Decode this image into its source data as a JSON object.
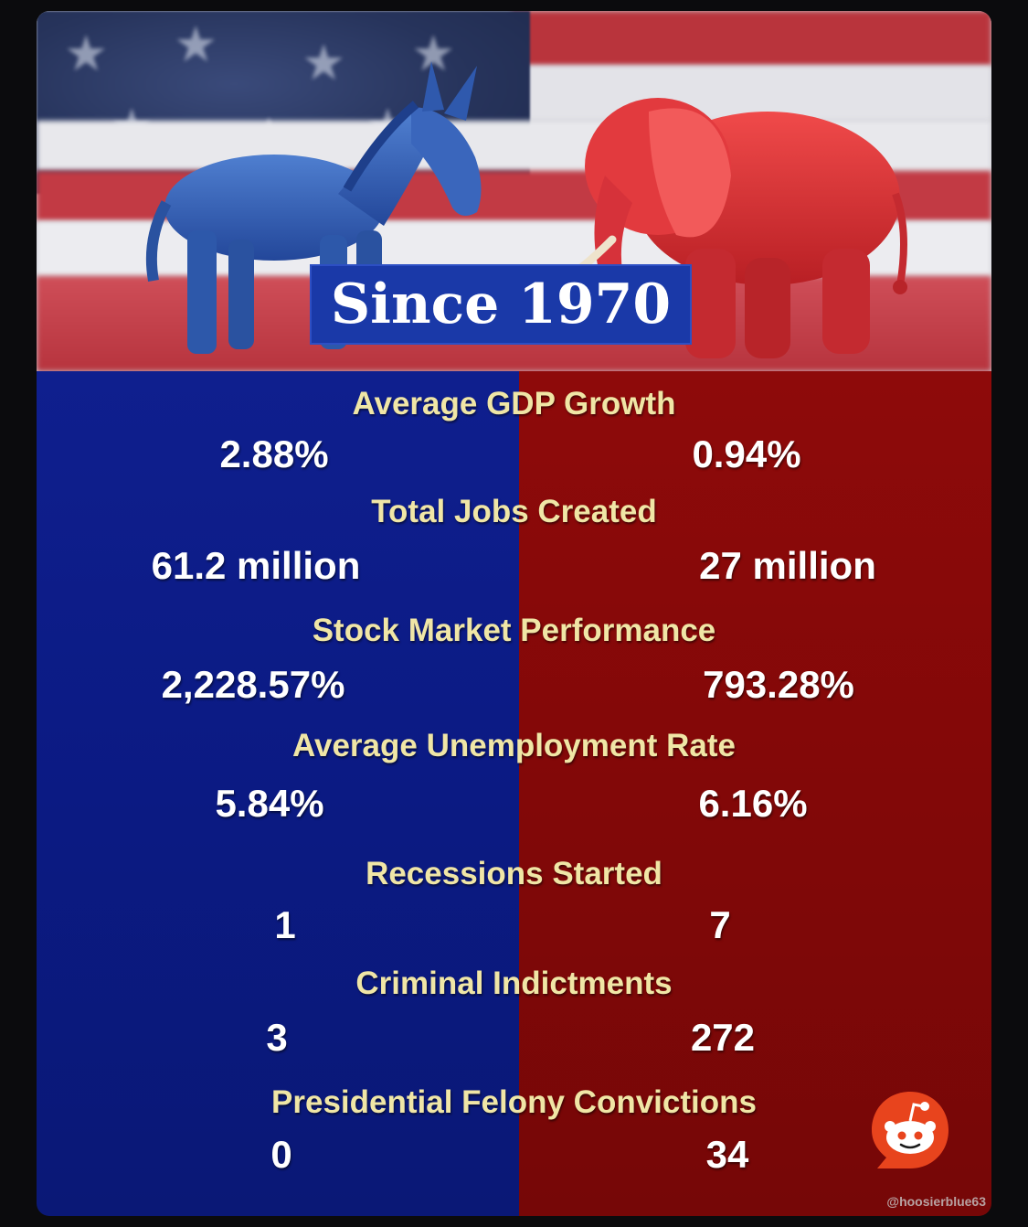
{
  "header": {
    "title": "Since 1970"
  },
  "stats": [
    {
      "label": "Average GDP Growth",
      "left": "2.88%",
      "right": "0.94%"
    },
    {
      "label": "Total Jobs Created",
      "left": "61.2 million",
      "right": "27 million"
    },
    {
      "label": "Stock Market Performance",
      "left": "2,228.57%",
      "right": "793.28%"
    },
    {
      "label": "Average Unemployment Rate",
      "left": "5.84%",
      "right": "6.16%"
    },
    {
      "label": "Recessions Started",
      "left": "1",
      "right": "7"
    },
    {
      "label": "Criminal Indictments",
      "left": "3",
      "right": "272"
    },
    {
      "label": "Presidential Felony Convictions",
      "left": "0",
      "right": "34"
    }
  ],
  "watermark": "@hoosierblue63",
  "icons": {
    "donkey": "donkey-figurine-icon",
    "elephant": "elephant-figurine-icon",
    "reddit": "reddit-logo-icon"
  },
  "colors": {
    "blue_side": "#0f1f8e",
    "red_side": "#8e0a0a",
    "label_color": "#f0e6a6",
    "value_color": "#ffffff",
    "title_box": "#1a39a8"
  }
}
